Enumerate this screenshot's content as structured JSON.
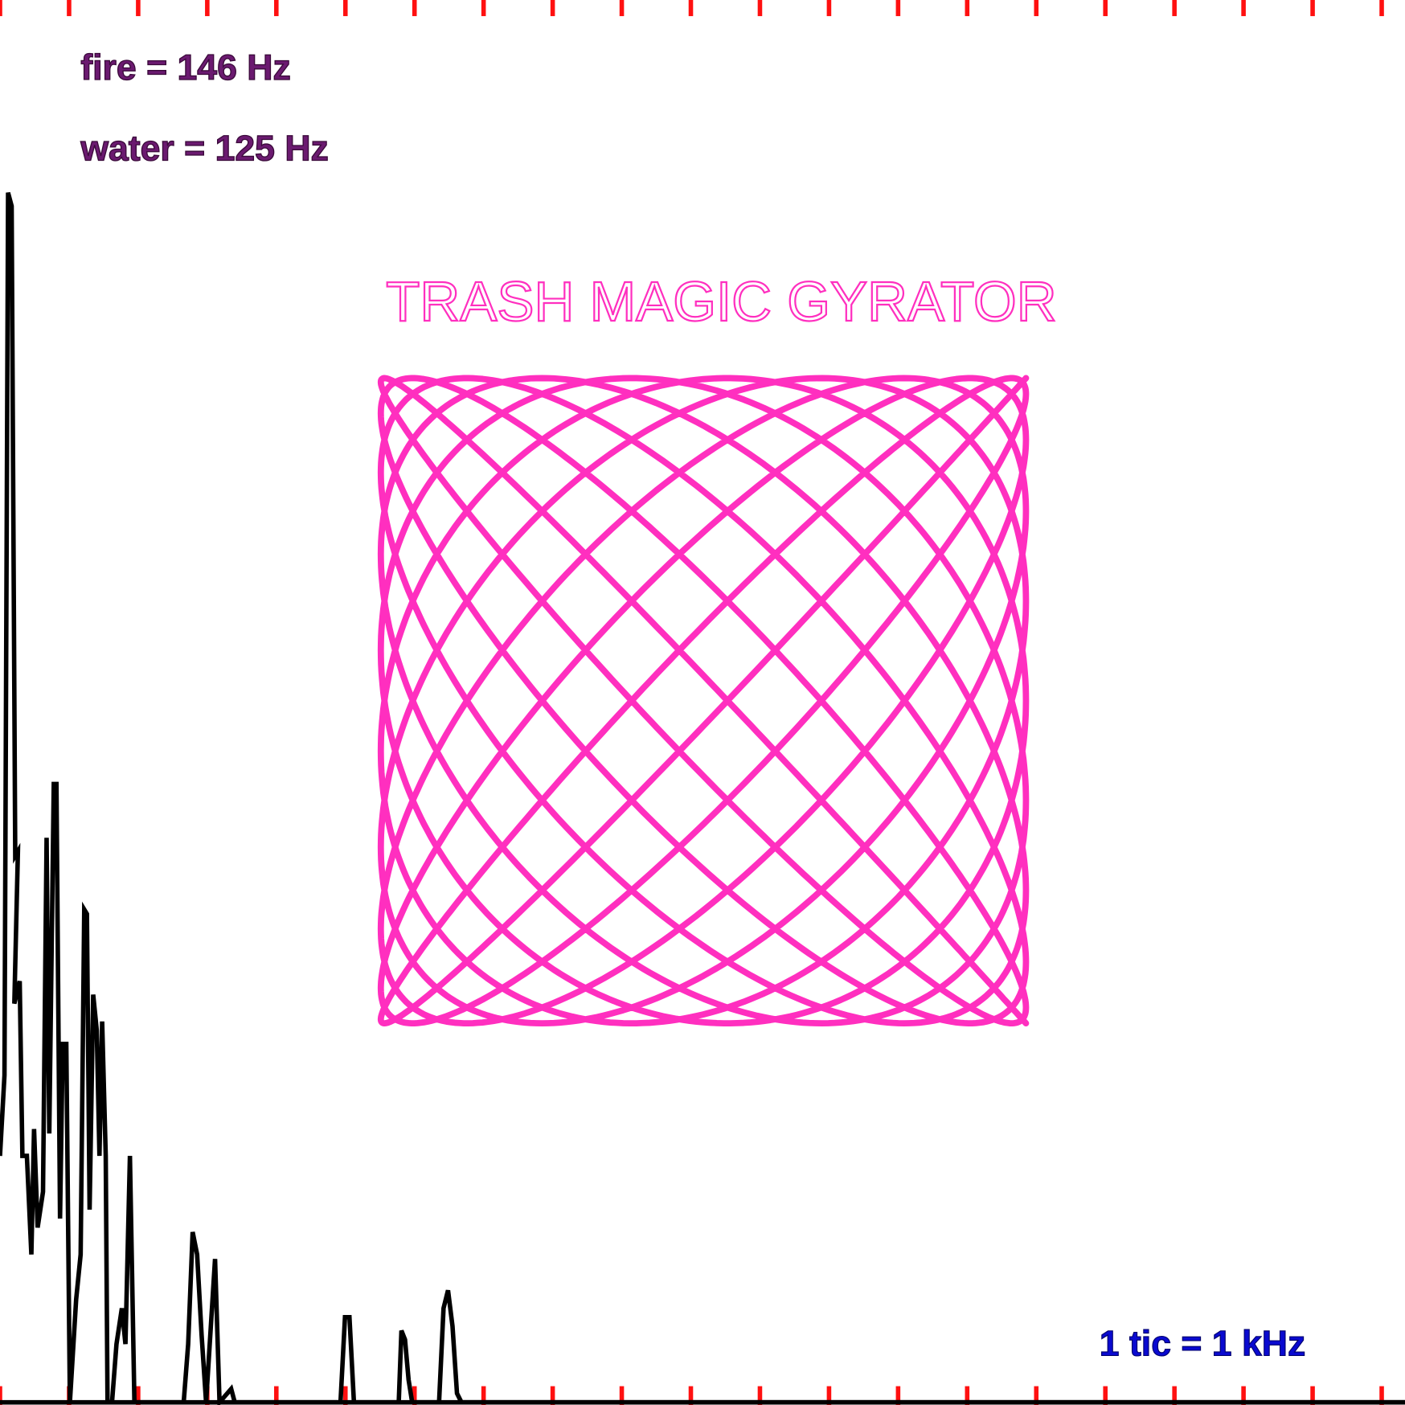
{
  "labels": {
    "fire": "fire = 146 Hz",
    "water": "water = 125 Hz"
  },
  "title": "TRASH MAGIC GYRATOR",
  "scale_note": "1 tic = 1 kHz"
}
